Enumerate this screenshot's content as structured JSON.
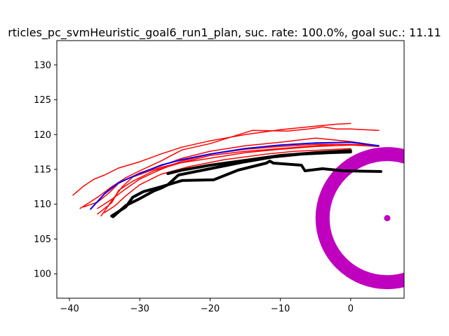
{
  "chart_data": {
    "type": "line",
    "title": "rticles_pc_svmHeuristic_goal6_run1_plan, suc. rate: 100.0%, goal suc.: 11.11",
    "xlabel": "",
    "ylabel": "",
    "xlim": [
      -41.8,
      7.6
    ],
    "ylim": [
      96.5,
      133.5
    ],
    "xticks": [
      -40,
      -30,
      -20,
      -10,
      0
    ],
    "yticks": [
      100,
      105,
      110,
      115,
      120,
      125,
      130
    ],
    "grid": false,
    "colors": {
      "planned": "#ff0000",
      "mean": "#0000ff",
      "executed": "#000000",
      "goal": "#bf00bf"
    },
    "goal": {
      "center": [
        5.2,
        108
      ],
      "inner_radius": 8.2,
      "outer_radius": 10.2
    },
    "series": [
      {
        "kind": "planned",
        "points": [
          [
            -39.5,
            111.3
          ],
          [
            -38,
            112.6
          ],
          [
            -36.5,
            113.6
          ],
          [
            -35,
            114.2
          ],
          [
            -33,
            115.2
          ],
          [
            -30,
            116.1
          ],
          [
            -27,
            117.2
          ],
          [
            -24,
            118.2
          ],
          [
            -20,
            119.1
          ],
          [
            -15,
            120
          ],
          [
            -10,
            120.7
          ],
          [
            -5,
            121.2
          ],
          [
            -2,
            121.5
          ],
          [
            0,
            121.6
          ]
        ]
      },
      {
        "kind": "planned",
        "points": [
          [
            -38.5,
            109.4
          ],
          [
            -36,
            111
          ],
          [
            -34,
            112.5
          ],
          [
            -32,
            113.8
          ],
          [
            -30,
            114.8
          ],
          [
            -27,
            116.2
          ],
          [
            -24,
            117.8
          ],
          [
            -20,
            118.7
          ],
          [
            -14,
            120.6
          ],
          [
            -9,
            120.5
          ],
          [
            -6,
            120.8
          ],
          [
            -4,
            121.1
          ],
          [
            -2,
            120.8
          ],
          [
            0,
            120.8
          ],
          [
            4,
            120.6
          ]
        ]
      },
      {
        "kind": "planned",
        "points": [
          [
            -38,
            109.6
          ],
          [
            -36,
            110.3
          ],
          [
            -34.5,
            111.5
          ],
          [
            -33,
            113
          ],
          [
            -30,
            114.5
          ],
          [
            -27,
            115.5
          ],
          [
            -24,
            116.6
          ],
          [
            -20,
            117.6
          ],
          [
            -15,
            118.4
          ],
          [
            -10,
            118.9
          ],
          [
            -5,
            119.5
          ],
          [
            0,
            119
          ],
          [
            4,
            118.4
          ]
        ]
      },
      {
        "kind": "planned",
        "points": [
          [
            -36,
            109.4
          ],
          [
            -34,
            110.7
          ],
          [
            -32,
            112.2
          ],
          [
            -30,
            113.6
          ],
          [
            -27,
            115
          ],
          [
            -24,
            116.2
          ],
          [
            -20,
            117.2
          ],
          [
            -15,
            117.9
          ],
          [
            -10,
            118.3
          ],
          [
            -5,
            118.6
          ],
          [
            0,
            118.6
          ],
          [
            4,
            118.4
          ]
        ]
      },
      {
        "kind": "planned",
        "points": [
          [
            -35.5,
            108.3
          ],
          [
            -34,
            110.5
          ],
          [
            -32.5,
            112.5
          ],
          [
            -31,
            113.9
          ],
          [
            -28,
            115
          ],
          [
            -25,
            115.8
          ],
          [
            -20,
            116.6
          ],
          [
            -15,
            117.4
          ],
          [
            -10,
            117.9
          ],
          [
            -5,
            118.3
          ],
          [
            0,
            118.5
          ],
          [
            4,
            118.3
          ]
        ]
      },
      {
        "kind": "planned",
        "points": [
          [
            -35,
            108.8
          ],
          [
            -33.5,
            109.8
          ],
          [
            -32,
            111.2
          ],
          [
            -30,
            112.8
          ],
          [
            -27,
            114.3
          ],
          [
            -23,
            115.4
          ],
          [
            -18,
            116.4
          ],
          [
            -12,
            117.2
          ],
          [
            -8,
            117.6
          ],
          [
            -4,
            117.8
          ],
          [
            0,
            118
          ]
        ]
      },
      {
        "kind": "planned",
        "points": [
          [
            -36,
            108.6
          ],
          [
            -34,
            110.2
          ],
          [
            -33,
            112
          ],
          [
            -31,
            113.3
          ],
          [
            -28,
            114.8
          ],
          [
            -24,
            116
          ],
          [
            -20,
            117
          ],
          [
            -15,
            117.6
          ],
          [
            -10,
            118
          ],
          [
            -5,
            118.4
          ],
          [
            -2,
            118.6
          ]
        ]
      },
      {
        "kind": "mean",
        "points": [
          [
            -37,
            109.3
          ],
          [
            -35,
            111.5
          ],
          [
            -33,
            113.1
          ],
          [
            -30,
            114.4
          ],
          [
            -27,
            115.6
          ],
          [
            -24,
            116.4
          ],
          [
            -20,
            117.2
          ],
          [
            -15,
            118
          ],
          [
            -10,
            118.5
          ],
          [
            -5,
            118.8
          ],
          [
            0,
            118.9
          ],
          [
            4,
            118.4
          ]
        ]
      },
      {
        "kind": "executed",
        "points": [
          [
            -34,
            108.3
          ],
          [
            -32,
            109.6
          ],
          [
            -31,
            111
          ],
          [
            -29.5,
            111.8
          ],
          [
            -27,
            112.5
          ],
          [
            -24,
            113.4
          ],
          [
            -19.5,
            113.5
          ],
          [
            -16,
            114.9
          ],
          [
            -12,
            115.9
          ],
          [
            -11.5,
            116.2
          ],
          [
            -11,
            115.9
          ],
          [
            -7,
            115.6
          ],
          [
            -6.5,
            114.8
          ],
          [
            -4,
            115.1
          ],
          [
            -1,
            114.8
          ],
          [
            4.3,
            114.7
          ]
        ]
      },
      {
        "kind": "executed",
        "points": [
          [
            -33.8,
            108.2
          ],
          [
            -32,
            109.8
          ],
          [
            -30,
            110.8
          ],
          [
            -28,
            111.9
          ],
          [
            -27,
            112.3
          ],
          [
            -26,
            112.8
          ],
          [
            -24.5,
            114.2
          ],
          [
            -22,
            114.7
          ],
          [
            -19,
            115.3
          ],
          [
            -15,
            116.1
          ],
          [
            -11,
            116.8
          ],
          [
            -7,
            117.2
          ],
          [
            -3,
            117.4
          ],
          [
            0,
            117.5
          ]
        ]
      },
      {
        "kind": "executed",
        "points": [
          [
            -26,
            114.4
          ],
          [
            -24,
            114.9
          ],
          [
            -20,
            115.6
          ],
          [
            -15,
            116.3
          ],
          [
            -10,
            117
          ],
          [
            -5,
            117.4
          ],
          [
            0,
            117.7
          ]
        ]
      }
    ]
  }
}
